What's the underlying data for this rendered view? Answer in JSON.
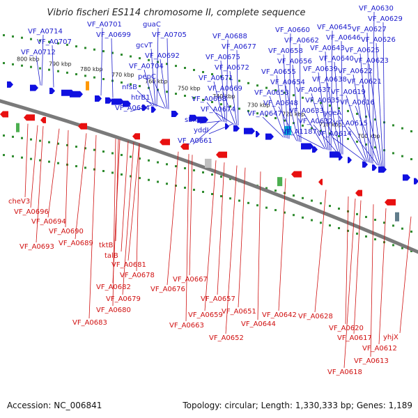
{
  "title": "Vibrio fischeri ES114 chromosome II, complete sequence",
  "footer": {
    "accession": "Accession: NC_006841",
    "summary": "Topology: circular; Length: 1,330,333 bp; Genes: 1,189"
  },
  "colors": {
    "forward": "#1010e0",
    "reverse": "#e81010",
    "top_label": "#1a1acc",
    "bottom_label": "#d01010",
    "backbone": "#7a7a7a",
    "dots": "#2e8b2e"
  },
  "ticks": [
    "800 kbp",
    "790 kbp",
    "780 kbp",
    "770 kbp",
    "760 kbp",
    "750 kbp",
    "740 kbp",
    "730 kbp",
    "720 kbp",
    "710 kbp",
    "700 kbp"
  ],
  "top_labels": [
    "VF_A0714",
    "VF_A0707",
    "VF_A0712",
    "VF_A0701",
    "VF_A0699",
    "guaC",
    "VF_A0705",
    "gcvT",
    "VF_A0692",
    "VF_A0704",
    "pepC",
    "nfsB",
    "htrB1",
    "VF_A0684",
    "VF_A0688",
    "VF_A0677",
    "VF_A0675",
    "VF_A0672",
    "VF_A0671",
    "VF_A0669",
    "VF_A0668",
    "VF_A0674",
    "sbmA",
    "yddI",
    "VF_A0661",
    "VF_A0660",
    "VF_A0662",
    "VF_A0658",
    "VF_A0656",
    "VF_A0655",
    "VF_A0654",
    "VF_A0653",
    "VF_A0648",
    "VF_A0647",
    "VF_A0645",
    "VF_A0646",
    "VF_A0643",
    "VF_A0640",
    "VF_A0639",
    "VF_A0638",
    "VF_A0637",
    "VF_A0635",
    "VF_A0633",
    "VF_A0632",
    "VF_A1187",
    "VF_A0630",
    "VF_A0629",
    "VF_A0627",
    "VF_A0626",
    "VF_A0625",
    "VF_A0623",
    "VF_A0622",
    "VF_A0621",
    "VF_A0619",
    "VF_A0616",
    "ygeA",
    "VF_A0615",
    "VF_A0614"
  ],
  "bottom_labels": [
    "cheV3",
    "VF_A0696",
    "VF_A0694",
    "VF_A0690",
    "VF_A0693",
    "VF_A0689",
    "tktB",
    "talB",
    "VF_A0681",
    "VF_A0678",
    "VF_A0682",
    "VF_A0679",
    "VF_A0680",
    "VF_A0683",
    "VF_A0676",
    "VF_A0667",
    "VF_A0657",
    "VF_A0659",
    "VF_A0663",
    "VF_A0651",
    "VF_A0652",
    "VF_A0644",
    "VF_A0642",
    "VF_A0628",
    "VF_A0620",
    "VF_A0617",
    "VF_A0618",
    "VF_A0613",
    "VF_A0612",
    "yhjX"
  ]
}
